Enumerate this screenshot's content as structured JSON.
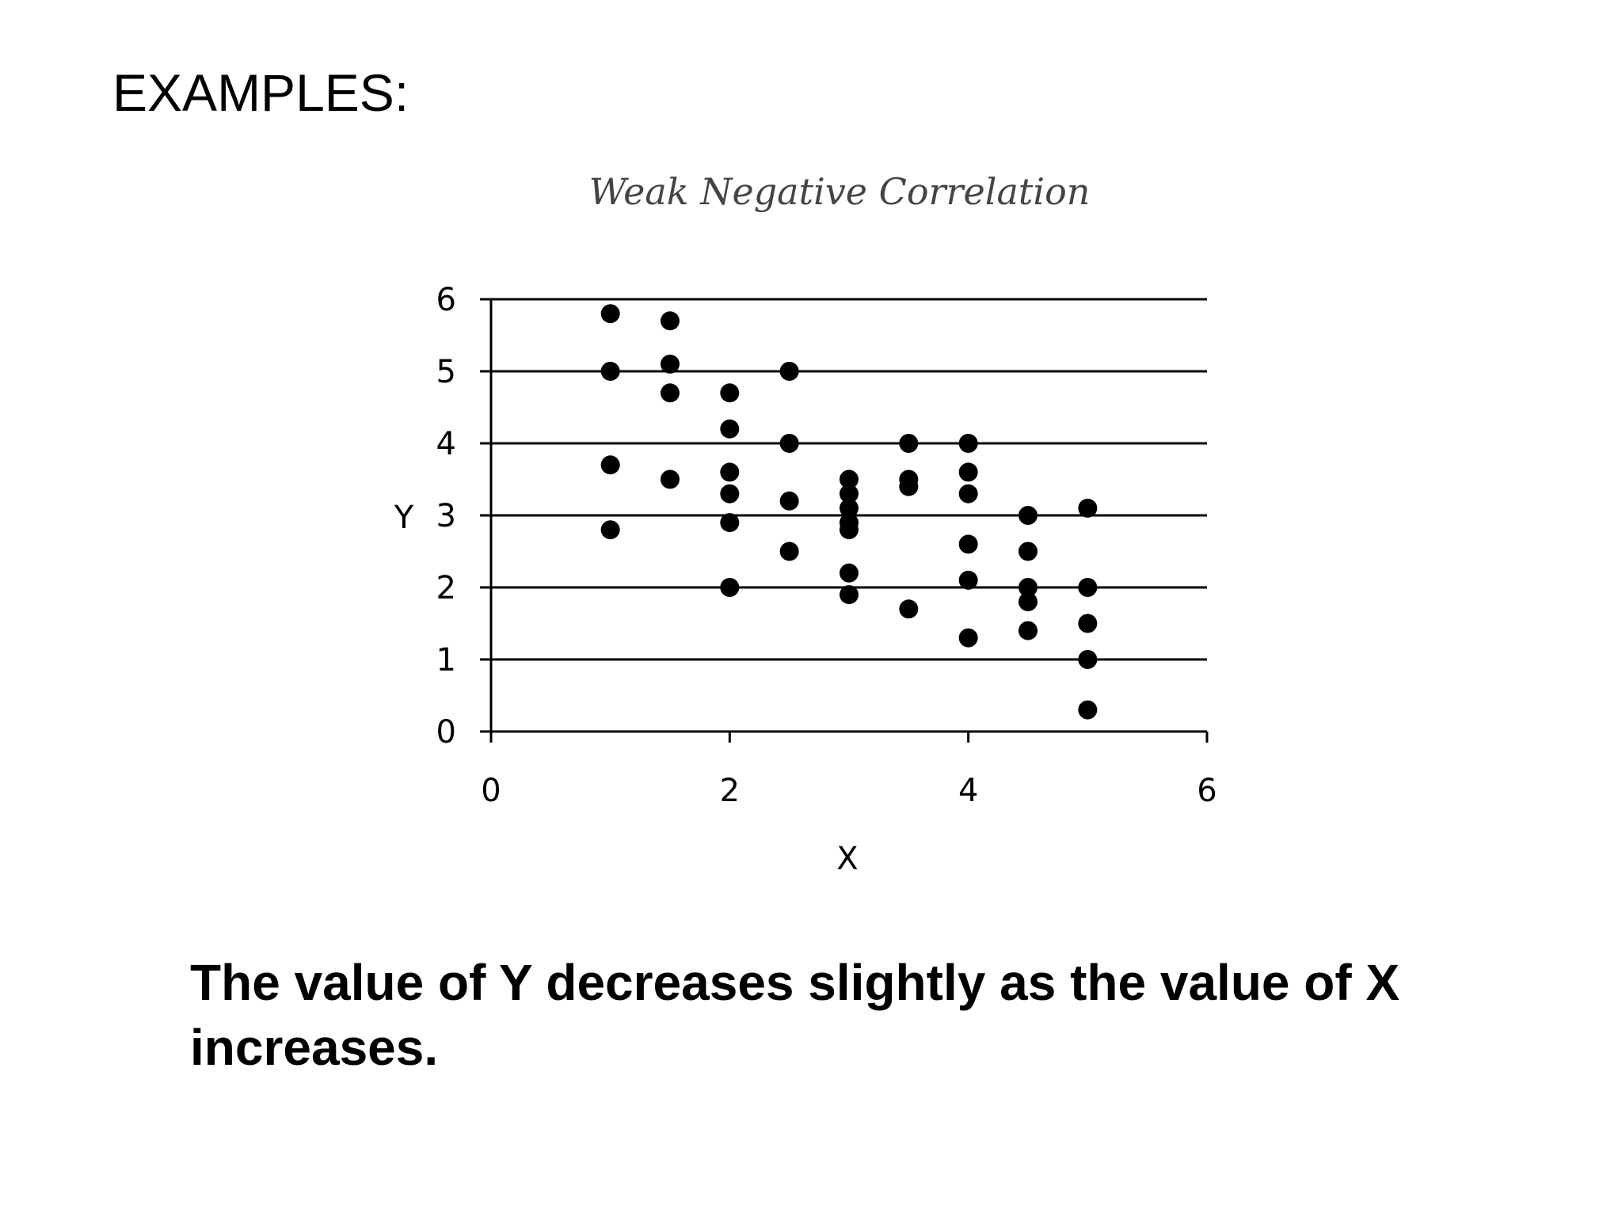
{
  "slide": {
    "heading": "EXAMPLES:",
    "caption": "The value of Y decreases slightly as the value of X increases."
  },
  "chart_data": {
    "type": "scatter",
    "title": "Weak Negative Correlation",
    "xlabel": "X",
    "ylabel": "Y",
    "xlim": [
      0,
      6
    ],
    "ylim": [
      0,
      6
    ],
    "xticks": [
      0,
      2,
      4,
      6
    ],
    "yticks": [
      0,
      1,
      2,
      3,
      4,
      5,
      6
    ],
    "horizontal_gridlines": true,
    "points": [
      {
        "x": 1,
        "y": 5.8
      },
      {
        "x": 1,
        "y": 5.0
      },
      {
        "x": 1,
        "y": 3.7
      },
      {
        "x": 1,
        "y": 2.8
      },
      {
        "x": 1.5,
        "y": 5.7
      },
      {
        "x": 1.5,
        "y": 5.1
      },
      {
        "x": 1.5,
        "y": 4.7
      },
      {
        "x": 1.5,
        "y": 3.5
      },
      {
        "x": 2,
        "y": 4.7
      },
      {
        "x": 2,
        "y": 4.2
      },
      {
        "x": 2,
        "y": 3.6
      },
      {
        "x": 2,
        "y": 3.3
      },
      {
        "x": 2,
        "y": 2.9
      },
      {
        "x": 2,
        "y": 2.0
      },
      {
        "x": 2.5,
        "y": 5.0
      },
      {
        "x": 2.5,
        "y": 4.0
      },
      {
        "x": 2.5,
        "y": 3.2
      },
      {
        "x": 2.5,
        "y": 2.5
      },
      {
        "x": 3,
        "y": 3.5
      },
      {
        "x": 3,
        "y": 3.3
      },
      {
        "x": 3,
        "y": 3.1
      },
      {
        "x": 3,
        "y": 2.9
      },
      {
        "x": 3,
        "y": 2.8
      },
      {
        "x": 3,
        "y": 2.2
      },
      {
        "x": 3,
        "y": 1.9
      },
      {
        "x": 3.5,
        "y": 4.0
      },
      {
        "x": 3.5,
        "y": 3.5
      },
      {
        "x": 3.5,
        "y": 3.4
      },
      {
        "x": 3.5,
        "y": 1.7
      },
      {
        "x": 4,
        "y": 4.0
      },
      {
        "x": 4,
        "y": 3.6
      },
      {
        "x": 4,
        "y": 3.3
      },
      {
        "x": 4,
        "y": 2.6
      },
      {
        "x": 4,
        "y": 2.1
      },
      {
        "x": 4,
        "y": 1.3
      },
      {
        "x": 4.5,
        "y": 3.0
      },
      {
        "x": 4.5,
        "y": 2.5
      },
      {
        "x": 4.5,
        "y": 2.0
      },
      {
        "x": 4.5,
        "y": 1.8
      },
      {
        "x": 4.5,
        "y": 1.4
      },
      {
        "x": 5,
        "y": 3.1
      },
      {
        "x": 5,
        "y": 2.0
      },
      {
        "x": 5,
        "y": 1.5
      },
      {
        "x": 5,
        "y": 1.0
      },
      {
        "x": 5,
        "y": 0.3
      }
    ],
    "marker_color": "#000000",
    "gridline_color": "#000000",
    "title_color": "#444444"
  }
}
